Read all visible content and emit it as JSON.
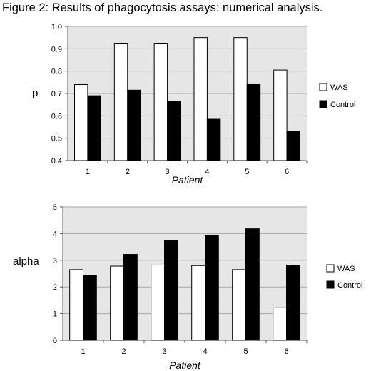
{
  "title": "Figure 2:   Results of phagocytosis assays:  numerical analysis.",
  "colors": {
    "WAS": "#ffffff",
    "Control": "#000000",
    "plot_bg": "#e6e6e6",
    "grid": "#a6a6a6"
  },
  "chart_data": [
    {
      "type": "bar",
      "categories": [
        "1",
        "2",
        "3",
        "4",
        "5",
        "6"
      ],
      "series": [
        {
          "name": "WAS",
          "values": [
            0.74,
            0.925,
            0.925,
            0.95,
            0.95,
            0.805
          ]
        },
        {
          "name": "Control",
          "values": [
            0.69,
            0.715,
            0.665,
            0.585,
            0.74,
            0.53
          ]
        }
      ],
      "ylabel": "p",
      "xlabel": "Patient",
      "ylim": [
        0.4,
        1.0
      ],
      "yticks": [
        "0.4",
        "0.5",
        "0.6",
        "0.7",
        "0.8",
        "0.9",
        "1.0"
      ],
      "grid": true,
      "legend": "right"
    },
    {
      "type": "bar",
      "categories": [
        "1",
        "2",
        "3",
        "4",
        "5",
        "6"
      ],
      "series": [
        {
          "name": "WAS",
          "values": [
            2.65,
            2.78,
            2.82,
            2.8,
            2.65,
            1.22
          ]
        },
        {
          "name": "Control",
          "values": [
            2.42,
            3.22,
            3.75,
            3.92,
            4.18,
            2.82
          ]
        }
      ],
      "ylabel": "alpha",
      "xlabel": "Patient",
      "ylim": [
        0,
        5
      ],
      "yticks": [
        "0",
        "1",
        "2",
        "3",
        "4",
        "5"
      ],
      "grid": true,
      "legend": "right"
    }
  ]
}
